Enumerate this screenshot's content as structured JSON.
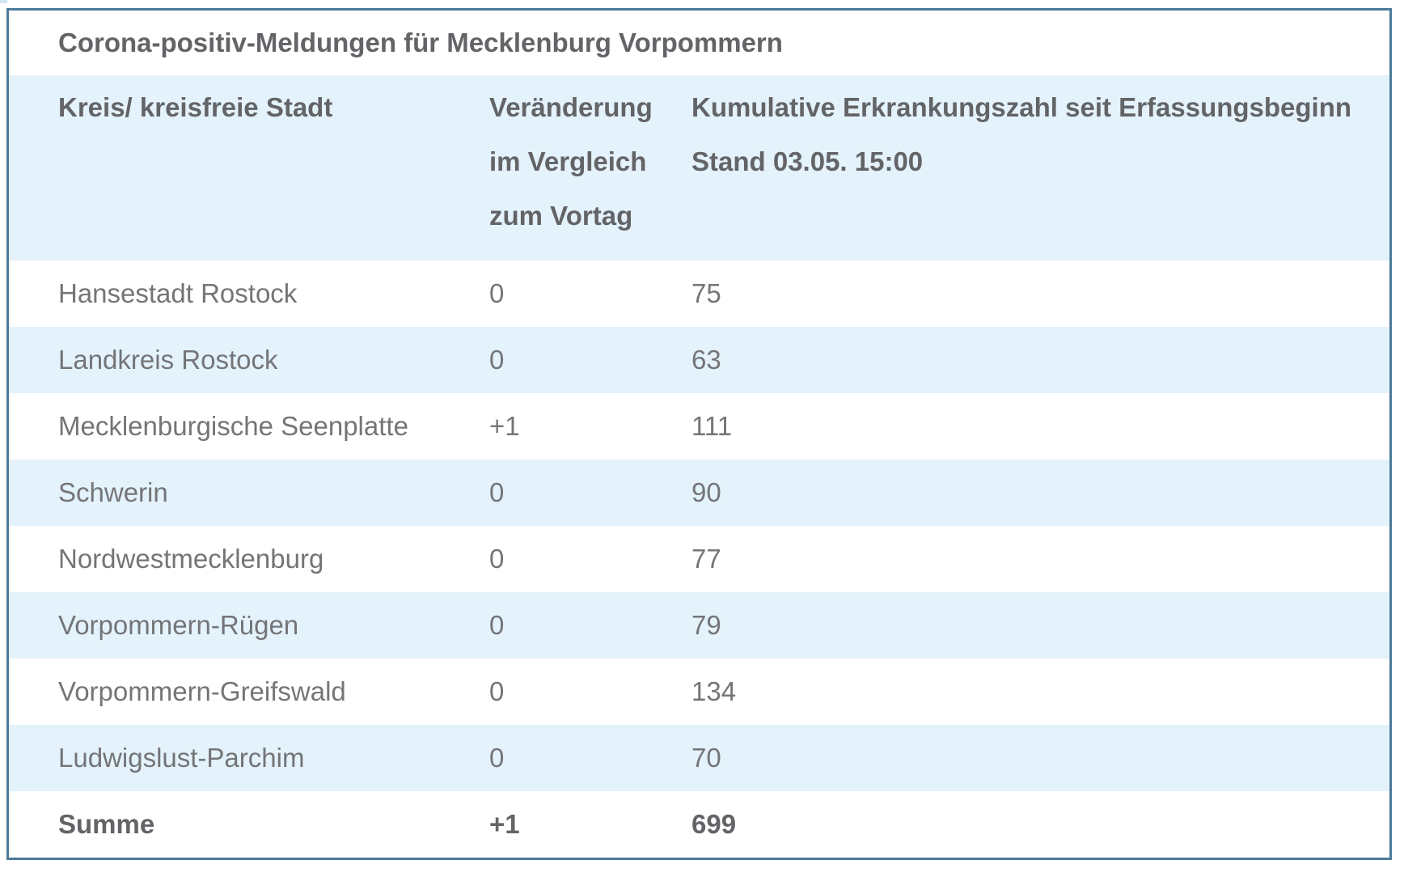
{
  "page": {
    "title": "Corona-positiv-Meldungen für Mecklenburg Vorpommern"
  },
  "table": {
    "header": {
      "col1": "Kreis/ kreisfreie Stadt",
      "col2_lines": [
        "Veränderung",
        "im Vergleich",
        "zum Vortag"
      ],
      "col3_lines": [
        "Kumulative Erkrankungszahl seit Erfassungsbeginn",
        "Stand 03.05. 15:00"
      ]
    },
    "rows": [
      {
        "kreis": "Hansestadt Rostock",
        "change": "0",
        "total": "75"
      },
      {
        "kreis": "Landkreis Rostock",
        "change": "0",
        "total": "63"
      },
      {
        "kreis": "Mecklenburgische Seenplatte",
        "change": "+1",
        "total": "111"
      },
      {
        "kreis": "Schwerin",
        "change": "0",
        "total": "90"
      },
      {
        "kreis": "Nordwestmecklenburg",
        "change": "0",
        "total": "77"
      },
      {
        "kreis": "Vorpommern-Rügen",
        "change": "0",
        "total": "79"
      },
      {
        "kreis": "Vorpommern-Greifswald",
        "change": "0",
        "total": "134"
      },
      {
        "kreis": "Ludwigslust-Parchim",
        "change": "0",
        "total": "70"
      }
    ],
    "summary": {
      "kreis": "Summe",
      "change": "+1",
      "total": "699"
    }
  },
  "colors": {
    "border": "#4d7b99",
    "row_alt_background": "#e4f2fb",
    "text_regular": "#747578",
    "text_bold": "#636467"
  },
  "chart_data": {
    "type": "table",
    "title": "Corona-positiv-Meldungen für Mecklenburg Vorpommern",
    "columns": [
      "Kreis/ kreisfreie Stadt",
      "Veränderung im Vergleich zum Vortag",
      "Kumulative Erkrankungszahl seit Erfassungsbeginn Stand 03.05. 15:00"
    ],
    "rows": [
      [
        "Hansestadt Rostock",
        "0",
        "75"
      ],
      [
        "Landkreis Rostock",
        "0",
        "63"
      ],
      [
        "Mecklenburgische Seenplatte",
        "+1",
        "111"
      ],
      [
        "Schwerin",
        "0",
        "90"
      ],
      [
        "Nordwestmecklenburg",
        "0",
        "77"
      ],
      [
        "Vorpommern-Rügen",
        "0",
        "79"
      ],
      [
        "Vorpommern-Greifswald",
        "0",
        "134"
      ],
      [
        "Ludwigslust-Parchim",
        "0",
        "70"
      ],
      [
        "Summe",
        "+1",
        "699"
      ]
    ]
  }
}
